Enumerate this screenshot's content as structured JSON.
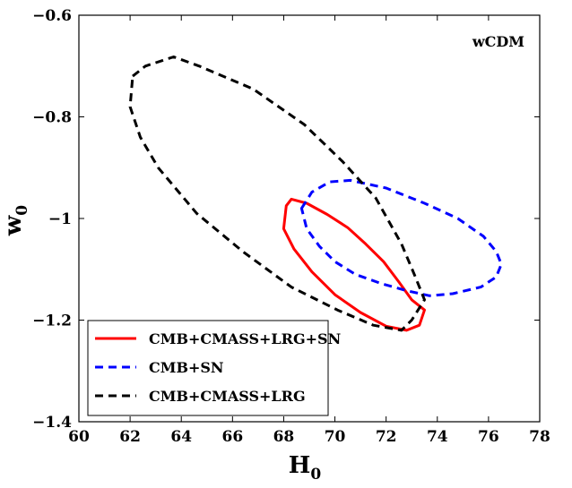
{
  "chart_data": {
    "type": "line",
    "title": "",
    "annotation": "wCDM",
    "xlabel": {
      "main": "H",
      "subscript": "0"
    },
    "ylabel": {
      "main": "w",
      "subscript": "0"
    },
    "xlim": [
      60,
      78
    ],
    "ylim": [
      -1.4,
      -0.6
    ],
    "xticks": [
      60,
      62,
      64,
      66,
      68,
      70,
      72,
      74,
      76,
      78
    ],
    "xtick_labels": [
      "60",
      "62",
      "64",
      "66",
      "68",
      "70",
      "72",
      "74",
      "76",
      "78"
    ],
    "yticks": [
      -0.6,
      -0.8,
      -1.0,
      -1.2,
      -1.4
    ],
    "ytick_labels": [
      "−0.6",
      "−0.8",
      "−1",
      "−1.2",
      "−1.4"
    ],
    "grid": false,
    "legend_position": "bottom-left",
    "series": [
      {
        "name": "CMB+CMASS+LRG+SN",
        "color": "#ff0000",
        "style": "solid",
        "closed": true,
        "points": [
          [
            68.3,
            -0.962
          ],
          [
            68.9,
            -0.97
          ],
          [
            69.7,
            -0.992
          ],
          [
            70.5,
            -1.018
          ],
          [
            71.2,
            -1.05
          ],
          [
            71.9,
            -1.085
          ],
          [
            72.5,
            -1.125
          ],
          [
            73.0,
            -1.16
          ],
          [
            73.5,
            -1.18
          ],
          [
            73.3,
            -1.21
          ],
          [
            72.8,
            -1.22
          ],
          [
            72.0,
            -1.212
          ],
          [
            71.0,
            -1.185
          ],
          [
            70.0,
            -1.15
          ],
          [
            69.1,
            -1.105
          ],
          [
            68.4,
            -1.06
          ],
          [
            68.0,
            -1.02
          ],
          [
            68.1,
            -0.975
          ],
          [
            68.3,
            -0.962
          ]
        ]
      },
      {
        "name": "CMB+SN",
        "color": "#0000ff",
        "style": "dashed",
        "closed": true,
        "points": [
          [
            68.7,
            -0.98
          ],
          [
            69.1,
            -0.948
          ],
          [
            69.8,
            -0.928
          ],
          [
            70.6,
            -0.925
          ],
          [
            72.0,
            -0.94
          ],
          [
            73.5,
            -0.97
          ],
          [
            74.8,
            -1.0
          ],
          [
            75.8,
            -1.035
          ],
          [
            76.3,
            -1.065
          ],
          [
            76.5,
            -1.09
          ],
          [
            76.3,
            -1.115
          ],
          [
            75.7,
            -1.135
          ],
          [
            74.6,
            -1.148
          ],
          [
            73.7,
            -1.152
          ],
          [
            72.8,
            -1.142
          ],
          [
            71.8,
            -1.128
          ],
          [
            70.8,
            -1.11
          ],
          [
            70.0,
            -1.085
          ],
          [
            69.4,
            -1.055
          ],
          [
            68.9,
            -1.02
          ],
          [
            68.7,
            -0.98
          ]
        ]
      },
      {
        "name": "CMB+CMASS+LRG",
        "color": "#000000",
        "style": "dashed",
        "closed": true,
        "points": [
          [
            62.1,
            -0.72
          ],
          [
            62.6,
            -0.7
          ],
          [
            63.7,
            -0.682
          ],
          [
            64.7,
            -0.7
          ],
          [
            66.8,
            -0.745
          ],
          [
            68.8,
            -0.815
          ],
          [
            70.3,
            -0.888
          ],
          [
            71.6,
            -0.96
          ],
          [
            72.6,
            -1.05
          ],
          [
            73.1,
            -1.11
          ],
          [
            73.5,
            -1.16
          ],
          [
            73.0,
            -1.2
          ],
          [
            72.6,
            -1.22
          ],
          [
            71.5,
            -1.21
          ],
          [
            70.1,
            -1.18
          ],
          [
            68.3,
            -1.135
          ],
          [
            66.4,
            -1.065
          ],
          [
            64.6,
            -0.99
          ],
          [
            63.1,
            -0.9
          ],
          [
            62.4,
            -0.84
          ],
          [
            62.0,
            -0.78
          ],
          [
            62.1,
            -0.72
          ]
        ]
      }
    ]
  }
}
